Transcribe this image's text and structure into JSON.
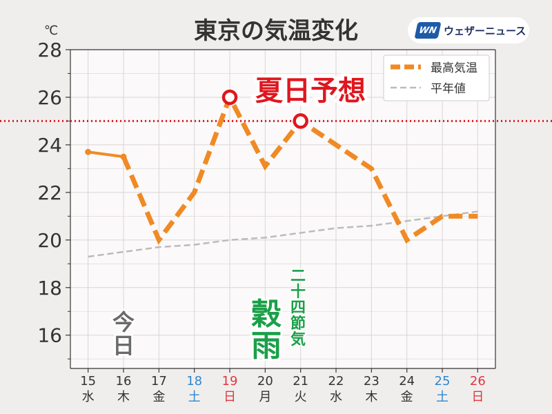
{
  "title": "東京の気温変化",
  "unit_label": "℃",
  "brand": {
    "mark": "WN",
    "name": "ウェザーニュース"
  },
  "colors": {
    "max": "#f08a24",
    "normal": "#bbbbbb",
    "threshold": "#e0161e",
    "weekday": "#333333",
    "saturday": "#2e86d1",
    "sunday": "#e0363e",
    "season": "#1aa048",
    "today": "#6a6a6a",
    "plot_bg": "#fbf9f9",
    "grid": "#d9d5d5"
  },
  "annotations": {
    "natsubi": "夏日予想",
    "today": "今日",
    "season_main": "穀雨",
    "season_sub": "二十四節気"
  },
  "chart_data": {
    "type": "line",
    "categories": [
      "15",
      "16",
      "17",
      "18",
      "19",
      "20",
      "21",
      "22",
      "23",
      "24",
      "25",
      "26"
    ],
    "weekdays": [
      "水",
      "木",
      "金",
      "土",
      "日",
      "月",
      "火",
      "水",
      "木",
      "金",
      "土",
      "日"
    ],
    "day_types": [
      "weekday",
      "weekday",
      "weekday",
      "saturday",
      "sunday",
      "weekday",
      "weekday",
      "weekday",
      "weekday",
      "weekday",
      "saturday",
      "sunday"
    ],
    "series": [
      {
        "name": "最高気温",
        "values": [
          23.7,
          23.5,
          20.0,
          22.0,
          26.0,
          23.1,
          25.0,
          24.0,
          23.0,
          20.0,
          21.0,
          21.0
        ],
        "observed_count": 2
      },
      {
        "name": "平年値",
        "values": [
          19.3,
          19.5,
          19.7,
          19.8,
          20.0,
          20.1,
          20.3,
          20.5,
          20.6,
          20.8,
          21.0,
          21.2
        ]
      }
    ],
    "threshold": 25,
    "highlight_points": [
      4,
      6
    ],
    "yticks": [
      16,
      18,
      20,
      22,
      24,
      26,
      28
    ],
    "ylim": [
      14.6,
      28
    ],
    "grid": true,
    "legend": "top-right"
  }
}
